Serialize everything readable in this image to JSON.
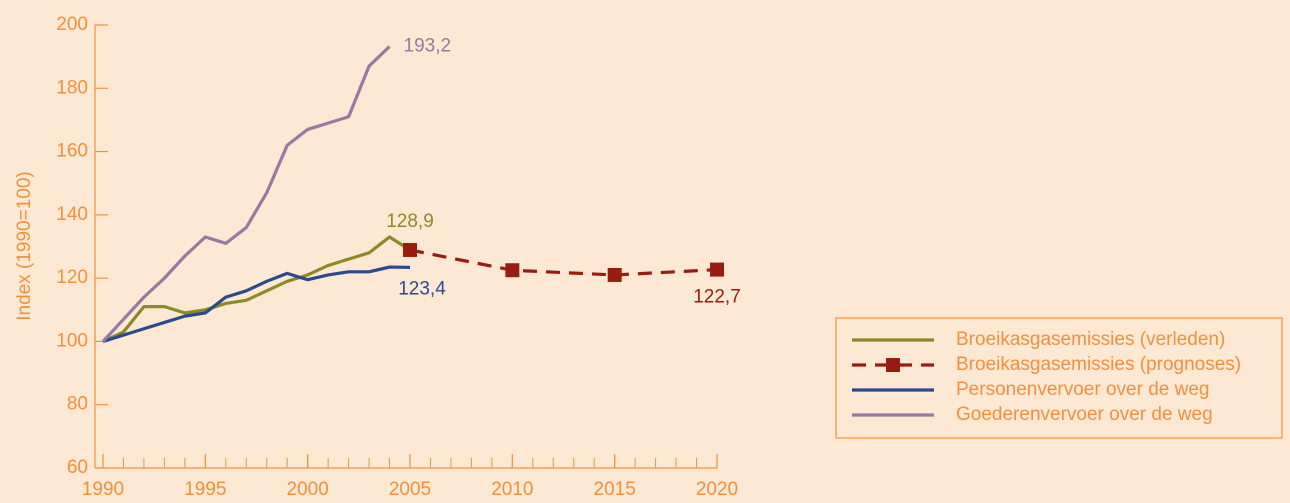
{
  "chart_data": {
    "type": "line",
    "y_label": "Index (1990=100)",
    "xlim": [
      1990,
      2020
    ],
    "xticks": [
      1990,
      1995,
      2000,
      2005,
      2010,
      2015,
      2020
    ],
    "ylim": [
      60,
      200
    ],
    "yticks": [
      60,
      80,
      100,
      120,
      140,
      160,
      180,
      200
    ],
    "legend": "right",
    "series": [
      {
        "name": "Broeikasgasemissies (verleden)",
        "color": "#8c8a28",
        "dash": false,
        "marker": "none",
        "x": [
          1990,
          1991,
          1992,
          1993,
          1994,
          1995,
          1996,
          1997,
          1998,
          1999,
          2000,
          2001,
          2002,
          2003,
          2004,
          2005
        ],
        "values": [
          100,
          103,
          111,
          111,
          109,
          110,
          112,
          113,
          116,
          119,
          121,
          124,
          126,
          128,
          133,
          128.9
        ],
        "value_labels": [
          null,
          null,
          null,
          null,
          null,
          null,
          null,
          null,
          null,
          null,
          null,
          null,
          null,
          null,
          null,
          "128,9"
        ]
      },
      {
        "name": "Broeikasgasemissies (prognoses)",
        "color": "#9a1c10",
        "dash": true,
        "marker": "square",
        "x": [
          2005,
          2010,
          2015,
          2020
        ],
        "values": [
          128.9,
          122.5,
          121,
          122.7
        ],
        "value_labels": [
          null,
          null,
          null,
          "122,7"
        ]
      },
      {
        "name": "Personenvervoer over de weg",
        "color": "#2b4a8e",
        "dash": false,
        "marker": "none",
        "x": [
          1990,
          1991,
          1992,
          1993,
          1994,
          1995,
          1996,
          1997,
          1998,
          1999,
          2000,
          2001,
          2002,
          2003,
          2004,
          2005
        ],
        "values": [
          100,
          102,
          104,
          106,
          108,
          109,
          114,
          116,
          119,
          121.5,
          119.5,
          121,
          122,
          122,
          123.5,
          123.4
        ],
        "value_labels": [
          null,
          null,
          null,
          null,
          null,
          null,
          null,
          null,
          null,
          null,
          null,
          null,
          null,
          null,
          null,
          "123,4"
        ]
      },
      {
        "name": "Goederenvervoer over de weg",
        "color": "#9a78a2",
        "dash": false,
        "marker": "none",
        "x": [
          1990,
          1991,
          1992,
          1993,
          1994,
          1995,
          1996,
          1997,
          1998,
          1999,
          2000,
          2001,
          2002,
          2003,
          2004
        ],
        "values": [
          100,
          107,
          114,
          120,
          127,
          133,
          131,
          136,
          147,
          162,
          167,
          169,
          171,
          187,
          193.2
        ],
        "value_labels": [
          null,
          null,
          null,
          null,
          null,
          null,
          null,
          null,
          null,
          null,
          null,
          null,
          null,
          null,
          "193,2"
        ]
      }
    ]
  }
}
